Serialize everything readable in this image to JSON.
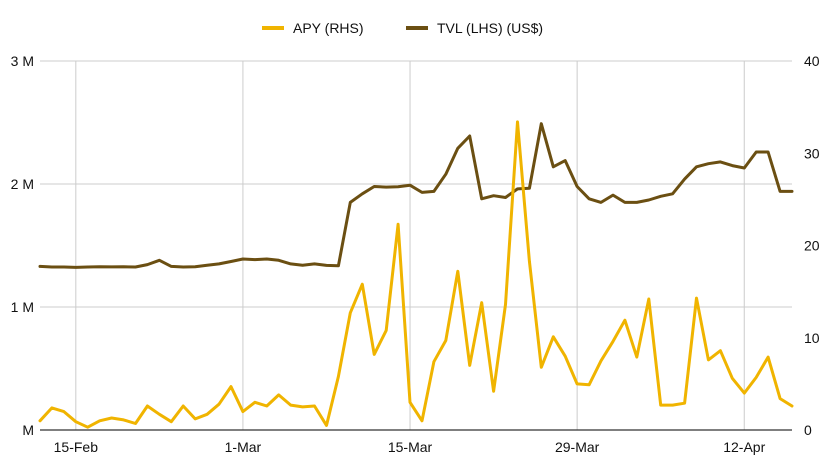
{
  "chart_data": {
    "type": "line",
    "legend": {
      "position": "top",
      "items": [
        {
          "label": "APY (RHS)",
          "color": "#f0b400"
        },
        {
          "label": "TVL (LHS) (US$)",
          "color": "#6b4f12"
        }
      ]
    },
    "x_start": "2022-02-12",
    "x_tick_labels": [
      {
        "label": "15-Feb",
        "day_index": 3
      },
      {
        "label": "1-Mar",
        "day_index": 17
      },
      {
        "label": "15-Mar",
        "day_index": 31
      },
      {
        "label": "29-Mar",
        "day_index": 45
      },
      {
        "label": "12-Apr",
        "day_index": 59
      }
    ],
    "left_axis": {
      "ticks": [
        "M",
        "1 M",
        "2 M",
        "3 M"
      ],
      "tick_values": [
        0,
        1000000,
        2000000,
        3000000
      ],
      "ylim": [
        0,
        3000000
      ]
    },
    "right_axis": {
      "ticks": [
        "0",
        "10",
        "20",
        "30",
        "40"
      ],
      "tick_values": [
        0,
        10,
        20,
        30,
        40
      ],
      "ylim": [
        0,
        40
      ]
    },
    "grid": {
      "horizontal": true,
      "vertical": true
    },
    "series": [
      {
        "name": "TVL (LHS) (US$)",
        "axis": "left",
        "color": "#6b4f12",
        "values": [
          1330000,
          1325000,
          1325000,
          1322000,
          1325000,
          1328000,
          1326000,
          1327000,
          1325000,
          1345000,
          1380000,
          1330000,
          1325000,
          1328000,
          1340000,
          1350000,
          1370000,
          1390000,
          1385000,
          1390000,
          1380000,
          1350000,
          1340000,
          1350000,
          1338000,
          1335000,
          1850000,
          1920000,
          1980000,
          1975000,
          1978000,
          1990000,
          1932000,
          1940000,
          2080000,
          2290000,
          2390000,
          1880000,
          1905000,
          1890000,
          1960000,
          1965000,
          2490000,
          2140000,
          2190000,
          1980000,
          1880000,
          1850000,
          1910000,
          1850000,
          1850000,
          1870000,
          1900000,
          1920000,
          2040000,
          2140000,
          2165000,
          2180000,
          2150000,
          2130000,
          2260000,
          2260000,
          1940000,
          1940000
        ]
      },
      {
        "name": "APY (RHS)",
        "axis": "right",
        "color": "#f0b400",
        "values": [
          1.0,
          2.4,
          2.0,
          0.9,
          0.3,
          1.0,
          1.3,
          1.1,
          0.7,
          2.6,
          1.7,
          0.9,
          2.6,
          1.2,
          1.7,
          2.8,
          4.7,
          2.0,
          3.0,
          2.6,
          3.8,
          2.7,
          2.5,
          2.6,
          0.5,
          5.8,
          12.7,
          15.8,
          8.2,
          10.8,
          22.3,
          3.0,
          1.0,
          7.4,
          9.7,
          17.2,
          7.0,
          13.8,
          4.2,
          13.6,
          33.4,
          18.3,
          6.8,
          10.1,
          8.0,
          5.0,
          4.9,
          7.5,
          9.6,
          11.9,
          7.9,
          14.2,
          2.7,
          2.7,
          2.9,
          14.3,
          7.6,
          8.6,
          5.6,
          4.0,
          5.7,
          7.9,
          3.4,
          2.6
        ]
      }
    ]
  }
}
